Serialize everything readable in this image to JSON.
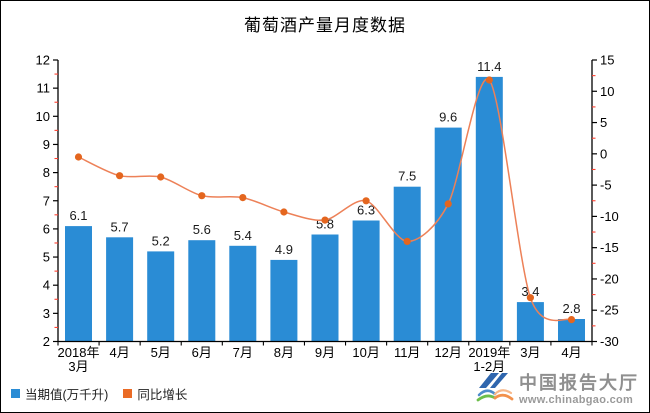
{
  "title": "葡萄酒产量月度数据",
  "chart_data": {
    "type": "bar",
    "subtype": "bar+line combo, dual axis",
    "categories": [
      "2018年\n3月",
      "4月",
      "5月",
      "6月",
      "7月",
      "8月",
      "9月",
      "10月",
      "11月",
      "12月",
      "2019年\n1-2月",
      "3月",
      "4月"
    ],
    "series": [
      {
        "name": "当期值(万千升)",
        "type": "bar",
        "axis": "left",
        "color": "#2A8CD5",
        "values": [
          6.1,
          5.7,
          5.2,
          5.6,
          5.4,
          4.9,
          5.8,
          6.3,
          7.5,
          9.6,
          11.4,
          3.4,
          2.8
        ],
        "data_labels": [
          "6.1",
          "5.7",
          "5.2",
          "5.6",
          "5.4",
          "4.9",
          "5.8",
          "6.3",
          "7.5",
          "9.6",
          "11.4",
          "3.4",
          "2.8"
        ]
      },
      {
        "name": "同比增长",
        "type": "line",
        "axis": "right",
        "color": "#ED8158",
        "marker_color": "#E4661F",
        "values": [
          -0.5,
          -3.5,
          -3.7,
          -6.7,
          -7.0,
          -9.3,
          -10.6,
          -7.5,
          -14.0,
          -8.0,
          11.8,
          -23.0,
          -26.5
        ]
      }
    ],
    "left_axis": {
      "min": 2,
      "max": 12,
      "step": 1,
      "minor_step": 0.5,
      "ticks": [
        "2",
        "3",
        "4",
        "5",
        "6",
        "7",
        "8",
        "9",
        "10",
        "11",
        "12"
      ]
    },
    "right_axis": {
      "min": -30,
      "max": 15,
      "step": 5,
      "minor_step": 2.5,
      "ticks": [
        "-30",
        "-25",
        "-20",
        "-15",
        "-10",
        "-5",
        "0",
        "5",
        "10",
        "15"
      ]
    },
    "grid": false,
    "legend_position": "bottom-left",
    "axis_color": "#000000",
    "minor_tick_color": "#FF4030",
    "label_color": "#1A1A1A"
  },
  "legend": {
    "items": [
      {
        "label": "当期值(万千升)",
        "color": "#2A8CD5"
      },
      {
        "label": "同比增长",
        "color": "#EA6B25"
      }
    ]
  },
  "watermark": {
    "brand": "中国报告大厅",
    "url": "www.chinabgao.com"
  }
}
